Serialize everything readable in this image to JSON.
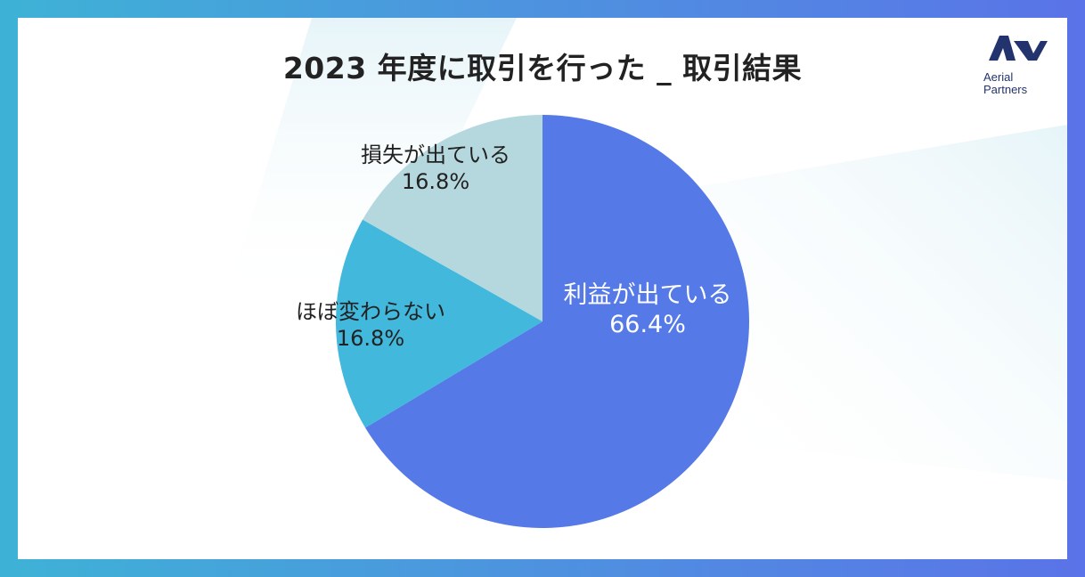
{
  "logo": {
    "line1": "Aerial",
    "line2": "Partners"
  },
  "colors": {
    "profit": "#5579e6",
    "same": "#41b8dc",
    "loss": "#b4d8de",
    "frame": "#4f8fe0"
  },
  "chart_data": {
    "type": "pie",
    "title": "2023 年度に取引を行った _ 取引結果",
    "slices": [
      {
        "label": "利益が出ている",
        "value": 66.4,
        "display": "66.4%",
        "color": "#5579e6",
        "text_color": "#ffffff"
      },
      {
        "label": "ほぼ変わらない",
        "value": 16.8,
        "display": "16.8%",
        "color": "#41b8dc",
        "text_color": "#222222"
      },
      {
        "label": "損失が出ている",
        "value": 16.8,
        "display": "16.8%",
        "color": "#b4d8de",
        "text_color": "#222222"
      }
    ],
    "start": "12 o'clock",
    "direction": "clockwise",
    "legend": "none"
  }
}
